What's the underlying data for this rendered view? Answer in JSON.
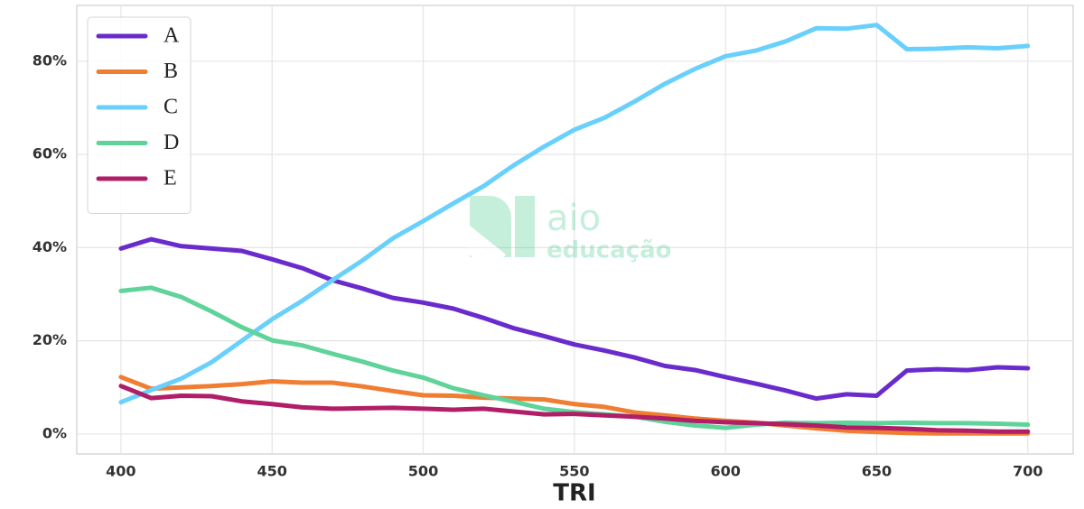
{
  "chart_data": {
    "type": "line",
    "xlabel": "TRI",
    "x": [
      400,
      410,
      420,
      430,
      440,
      450,
      460,
      470,
      480,
      490,
      500,
      510,
      520,
      530,
      540,
      550,
      560,
      570,
      580,
      590,
      600,
      610,
      620,
      630,
      640,
      650,
      660,
      670,
      680,
      690,
      700
    ],
    "series": [
      {
        "name": "A",
        "color": "#6a2bcc",
        "values": [
          39.8,
          41.8,
          40.3,
          39.8,
          39.3,
          37.5,
          35.6,
          33.0,
          31.2,
          29.2,
          28.2,
          26.9,
          24.9,
          22.7,
          21.0,
          19.2,
          17.9,
          16.4,
          14.6,
          13.7,
          12.2,
          10.8,
          9.3,
          7.6,
          8.5,
          8.2,
          13.6,
          13.9,
          13.7,
          14.3,
          14.1
        ]
      },
      {
        "name": "B",
        "color": "#ef7d32",
        "values": [
          12.2,
          9.7,
          10.0,
          10.3,
          10.7,
          11.3,
          11.0,
          11.0,
          10.2,
          9.2,
          8.3,
          8.2,
          7.8,
          7.6,
          7.4,
          6.4,
          5.8,
          4.6,
          4.0,
          3.3,
          2.8,
          2.4,
          1.8,
          1.2,
          0.7,
          0.4,
          0.2,
          0.1,
          0.1,
          0.1,
          0.1
        ]
      },
      {
        "name": "C",
        "color": "#69d0fb",
        "values": [
          6.8,
          9.4,
          11.9,
          15.4,
          20.0,
          24.6,
          28.6,
          33.0,
          37.3,
          42.0,
          45.7,
          49.5,
          53.2,
          57.7,
          61.7,
          65.3,
          67.9,
          71.4,
          75.2,
          78.4,
          81.1,
          82.3,
          84.3,
          87.1,
          87.0,
          87.8,
          82.6,
          82.7,
          83.0,
          82.8,
          83.3
        ]
      },
      {
        "name": "D",
        "color": "#5fd39a",
        "values": [
          30.7,
          31.4,
          29.4,
          26.3,
          22.9,
          20.1,
          19.0,
          17.2,
          15.5,
          13.6,
          12.1,
          9.8,
          8.3,
          6.9,
          5.4,
          4.7,
          4.2,
          3.7,
          2.6,
          1.8,
          1.3,
          2.0,
          2.4,
          2.3,
          2.4,
          2.3,
          2.4,
          2.3,
          2.3,
          2.2,
          2.0
        ]
      },
      {
        "name": "E",
        "color": "#b01e68",
        "values": [
          10.3,
          7.7,
          8.2,
          8.1,
          7.0,
          6.4,
          5.7,
          5.4,
          5.5,
          5.6,
          5.4,
          5.2,
          5.4,
          4.8,
          4.2,
          4.3,
          4.0,
          3.7,
          3.3,
          2.8,
          2.5,
          2.3,
          2.1,
          1.8,
          1.4,
          1.3,
          1.1,
          0.8,
          0.7,
          0.5,
          0.5
        ]
      }
    ],
    "xlim": [
      385.4,
      715
    ],
    "ylim": [
      -4.3,
      92
    ],
    "xticks": [
      400,
      450,
      500,
      550,
      600,
      650,
      700
    ],
    "yticks": [
      {
        "value": 0,
        "label": "0%"
      },
      {
        "value": 20,
        "label": "20%"
      },
      {
        "value": 40,
        "label": "40%"
      },
      {
        "value": 60,
        "label": "60%"
      },
      {
        "value": 80,
        "label": "80%"
      }
    ],
    "grid": true,
    "legend": "upper left",
    "watermark": {
      "brand": "aio",
      "sub": "educação"
    }
  }
}
